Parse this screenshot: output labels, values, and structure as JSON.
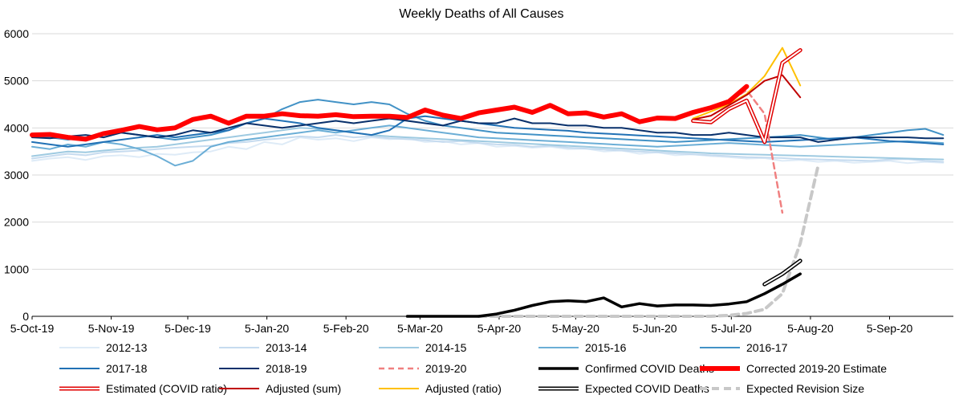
{
  "chart_data": {
    "type": "line",
    "title": "Weekly Deaths of All Causes",
    "xlabel": "",
    "ylabel": "",
    "ylim": [
      0,
      6000
    ],
    "yticks": [
      0,
      1000,
      2000,
      3000,
      4000,
      5000,
      6000
    ],
    "xlim": [
      "2019-10-05",
      "2020-09-30"
    ],
    "xtick_labels": [
      "5-Oct-19",
      "5-Nov-19",
      "5-Dec-19",
      "5-Jan-20",
      "5-Feb-20",
      "5-Mar-20",
      "5-Apr-20",
      "5-May-20",
      "5-Jun-20",
      "5-Jul-20",
      "5-Aug-20",
      "5-Sep-20"
    ],
    "xtick_dates": [
      "2019-10-05",
      "2019-11-05",
      "2019-12-05",
      "2020-01-05",
      "2020-02-05",
      "2020-03-05",
      "2020-04-05",
      "2020-05-05",
      "2020-06-05",
      "2020-07-05",
      "2020-08-05",
      "2020-09-05"
    ],
    "grid": "horizontal",
    "legend_position": "bottom",
    "series": [
      {
        "name": "2012-13",
        "color": "#deebf7",
        "style": "solid",
        "start": "2019-10-05",
        "values": [
          3300,
          3350,
          3380,
          3320,
          3400,
          3420,
          3380,
          3450,
          3430,
          3480,
          3500,
          3600,
          3550,
          3700,
          3650,
          3800,
          3750,
          3780,
          3720,
          3800,
          3760,
          3780,
          3700,
          3720,
          3650,
          3680,
          3600,
          3620,
          3580,
          3600,
          3550,
          3560,
          3500,
          3520,
          3450,
          3480,
          3420,
          3440,
          3400,
          3380,
          3350,
          3360,
          3300,
          3320,
          3280,
          3300,
          3260,
          3280,
          3300,
          3250,
          3280,
          3260
        ]
      },
      {
        "name": "2013-14",
        "color": "#c6dbef",
        "style": "solid",
        "start": "2019-10-05",
        "values": [
          3350,
          3400,
          3450,
          3420,
          3480,
          3500,
          3520,
          3550,
          3580,
          3600,
          3620,
          3680,
          3700,
          3750,
          3780,
          3820,
          3800,
          3850,
          3800,
          3820,
          3780,
          3760,
          3740,
          3700,
          3720,
          3680,
          3650,
          3640,
          3600,
          3620,
          3580,
          3560,
          3540,
          3520,
          3500,
          3480,
          3460,
          3440,
          3420,
          3400,
          3380,
          3370,
          3360,
          3340,
          3330,
          3320,
          3310,
          3300,
          3330,
          3340,
          3300,
          3280
        ]
      },
      {
        "name": "2014-15",
        "color": "#9ecae1",
        "style": "solid",
        "start": "2019-10-05",
        "values": [
          3400,
          3450,
          3500,
          3480,
          3520,
          3550,
          3580,
          3600,
          3650,
          3700,
          3750,
          3800,
          3850,
          3900,
          3950,
          4000,
          3980,
          3950,
          3900,
          3850,
          3820,
          3800,
          3780,
          3760,
          3740,
          3720,
          3700,
          3680,
          3660,
          3640,
          3620,
          3600,
          3580,
          3560,
          3540,
          3520,
          3500,
          3480,
          3460,
          3450,
          3440,
          3430,
          3420,
          3410,
          3400,
          3390,
          3380,
          3370,
          3360,
          3350,
          3340,
          3330
        ]
      },
      {
        "name": "2015-16",
        "color": "#6baed6",
        "style": "solid",
        "start": "2019-10-05",
        "values": [
          3600,
          3550,
          3650,
          3600,
          3700,
          3650,
          3550,
          3400,
          3200,
          3300,
          3600,
          3700,
          3750,
          3800,
          3850,
          3900,
          3950,
          3900,
          3950,
          4000,
          4050,
          4000,
          3950,
          3900,
          3850,
          3800,
          3780,
          3760,
          3740,
          3720,
          3700,
          3680,
          3660,
          3640,
          3620,
          3600,
          3620,
          3640,
          3660,
          3680,
          3660,
          3640,
          3620,
          3600,
          3620,
          3640,
          3660,
          3680,
          3700,
          3720,
          3700,
          3680
        ]
      },
      {
        "name": "2016-17",
        "color": "#4292c6",
        "style": "solid",
        "start": "2019-10-05",
        "values": [
          3850,
          3800,
          3750,
          3800,
          3850,
          3900,
          3850,
          3800,
          3750,
          3800,
          3850,
          3950,
          4100,
          4200,
          4400,
          4550,
          4600,
          4550,
          4500,
          4550,
          4500,
          4300,
          4150,
          4050,
          4000,
          3950,
          3900,
          3880,
          3860,
          3840,
          3820,
          3800,
          3780,
          3760,
          3740,
          3720,
          3700,
          3720,
          3740,
          3760,
          3780,
          3800,
          3820,
          3850,
          3800,
          3750,
          3800,
          3850,
          3900,
          3950,
          3980,
          3850
        ]
      },
      {
        "name": "2017-18",
        "color": "#2171b5",
        "style": "solid",
        "start": "2019-10-05",
        "values": [
          3700,
          3650,
          3600,
          3650,
          3700,
          3750,
          3800,
          3850,
          3800,
          3850,
          3900,
          3950,
          4100,
          4200,
          4150,
          4100,
          4000,
          3950,
          3900,
          3850,
          3950,
          4200,
          4250,
          4200,
          4150,
          4100,
          4050,
          4000,
          3980,
          3960,
          3940,
          3900,
          3880,
          3860,
          3840,
          3820,
          3800,
          3780,
          3760,
          3740,
          3720,
          3700,
          3720,
          3740,
          3760,
          3780,
          3800,
          3760,
          3720,
          3700,
          3680,
          3650
        ]
      },
      {
        "name": "2018-19",
        "color": "#08306b",
        "style": "solid",
        "start": "2019-10-05",
        "values": [
          3800,
          3780,
          3820,
          3850,
          3800,
          3900,
          3850,
          3800,
          3850,
          3950,
          3900,
          4000,
          4100,
          4050,
          4000,
          4050,
          4100,
          4150,
          4100,
          4150,
          4200,
          4150,
          4100,
          4050,
          4150,
          4100,
          4100,
          4200,
          4100,
          4100,
          4050,
          4050,
          4000,
          4000,
          3950,
          3900,
          3900,
          3850,
          3850,
          3900,
          3850,
          3800,
          3800,
          3800,
          3700,
          3750,
          3800,
          3800,
          3800,
          3800,
          3780,
          3780
        ]
      },
      {
        "name": "2019-20",
        "color": "#f08080",
        "style": "dashed",
        "start": "2019-10-05",
        "values": [
          3850,
          3860,
          3800,
          3760,
          3880,
          3950,
          4030,
          3960,
          4000,
          4180,
          4250,
          4100,
          4250,
          4250,
          4300,
          4260,
          4250,
          4280,
          4240,
          4250,
          4250,
          4220,
          4380,
          4270,
          4200,
          4320,
          4380,
          4440,
          4330,
          4480,
          4300,
          4320,
          4230,
          4300,
          4130,
          4210,
          4200,
          4330,
          4430,
          4560,
          4800,
          4300,
          2200
        ]
      },
      {
        "name": "Confirmed COVID Deaths",
        "color": "#000000",
        "style": "solid-thick",
        "start": "2020-02-29",
        "values": [
          0,
          0,
          0,
          0,
          0,
          50,
          130,
          230,
          310,
          330,
          310,
          390,
          200,
          270,
          220,
          240,
          240,
          230,
          260,
          310,
          480,
          680,
          900
        ]
      },
      {
        "name": "Corrected 2019-20 Estimate",
        "color": "#ff0000",
        "style": "solid-very-thick",
        "start": "2019-10-05",
        "values": [
          3850,
          3860,
          3800,
          3760,
          3880,
          3950,
          4030,
          3960,
          4000,
          4180,
          4250,
          4100,
          4250,
          4250,
          4300,
          4260,
          4250,
          4280,
          4240,
          4250,
          4250,
          4220,
          4380,
          4270,
          4200,
          4320,
          4380,
          4440,
          4330,
          4480,
          4300,
          4320,
          4230,
          4300,
          4130,
          4210,
          4200,
          4330,
          4430,
          4560,
          4880
        ]
      },
      {
        "name": "Estimated (COVID ratio)",
        "color": "#e00000",
        "style": "double-outline",
        "start": "2020-06-20",
        "values": [
          4150,
          4120,
          4400,
          4580,
          3700,
          5380,
          5650
        ]
      },
      {
        "name": "Adjusted (sum)",
        "color": "#c00000",
        "style": "solid",
        "start": "2020-06-20",
        "values": [
          4180,
          4260,
          4480,
          4700,
          5000,
          5120,
          4650
        ]
      },
      {
        "name": "Adjusted (ratio)",
        "color": "#ffc000",
        "style": "solid",
        "start": "2020-06-20",
        "values": [
          4200,
          4350,
          4500,
          4720,
          5100,
          5700,
          4900
        ]
      },
      {
        "name": "Expected COVID Deaths",
        "color": "#000000",
        "style": "double-outline",
        "start": "2020-07-18",
        "values": [
          680,
          900,
          1180
        ]
      },
      {
        "name": "Expected Revision Size",
        "color": "#c8c8c8",
        "style": "dashed-thick",
        "start": "2020-03-28",
        "values": [
          0,
          0,
          0,
          0,
          0,
          0,
          0,
          0,
          0,
          0,
          0,
          0,
          0,
          0,
          20,
          60,
          150,
          480,
          1550,
          3200
        ]
      }
    ]
  },
  "legend_rows": [
    [
      "2012-13",
      "2013-14",
      "2014-15",
      "2015-16",
      "2016-17"
    ],
    [
      "2017-18",
      "2018-19",
      "2019-20",
      "Confirmed COVID Deaths",
      "Corrected 2019-20 Estimate"
    ],
    [
      "Estimated (COVID ratio)",
      "Adjusted (sum)",
      "Adjusted (ratio)",
      "Expected COVID Deaths",
      "Expected Revision Size"
    ]
  ]
}
